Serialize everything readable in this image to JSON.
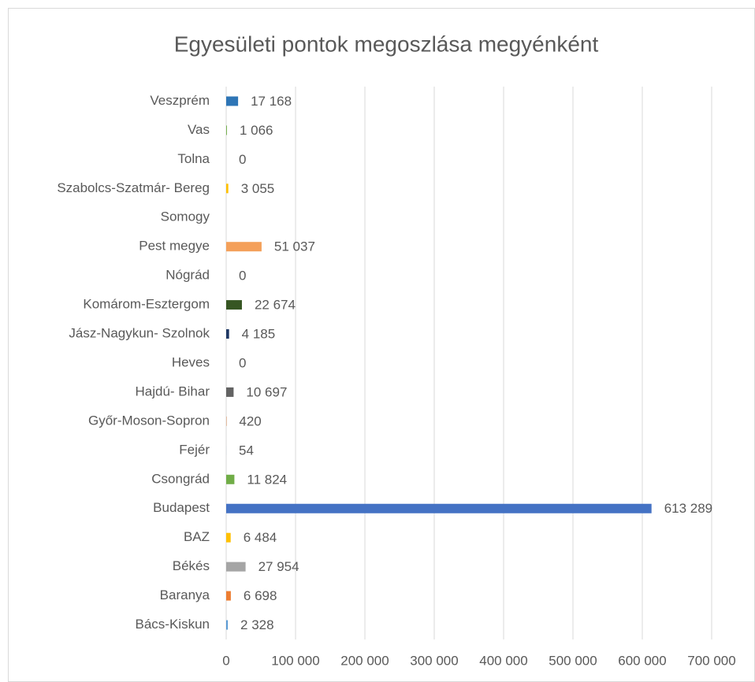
{
  "chart_data": {
    "type": "bar",
    "orientation": "horizontal",
    "title": "Egyesületi pontok megoszlása megyénként",
    "categories": [
      "Veszprém",
      "Vas",
      "Tolna",
      "Szabolcs-Szatmár- Bereg",
      "Somogy",
      "Pest megye",
      "Nógrád",
      "Komárom-Esztergom",
      "Jász-Nagykun- Szolnok",
      "Heves",
      "Hajdú- Bihar",
      "Győr-Moson-Sopron",
      "Fejér",
      "Csongrád",
      "Budapest",
      "BAZ",
      "Békés",
      "Baranya",
      "Bács-Kiskun"
    ],
    "values": [
      17168,
      1066,
      0,
      3055,
      null,
      51037,
      0,
      22674,
      4185,
      0,
      10697,
      420,
      54,
      11824,
      613289,
      6484,
      27954,
      6698,
      2328
    ],
    "value_labels": [
      "17 168",
      "1 066",
      "0",
      "3 055",
      null,
      "51 037",
      "0",
      "22 674",
      "4 185",
      "0",
      "10 697",
      "420",
      "54",
      "11 824",
      "613 289",
      "6 484",
      "27 954",
      "6 698",
      "2 328"
    ],
    "colors": [
      "#2e75b6",
      "#70ad47",
      null,
      "#ffc000",
      null,
      "#f4a05a",
      null,
      "#375623",
      "#1f3864",
      null,
      "#636363",
      "#c55a11",
      "#5b9bd5",
      "#70ad47",
      "#4472c4",
      "#ffc000",
      "#a5a5a5",
      "#ed7d31",
      "#5b9bd5"
    ],
    "xlim": [
      0,
      700000
    ],
    "xticks": [
      0,
      {
        "value": 100000,
        "label": "100 000"
      },
      {
        "value": 200000,
        "label": "200 000"
      },
      {
        "value": 300000,
        "label": "300 000"
      },
      {
        "value": 400000,
        "label": "400 000"
      },
      {
        "value": 500000,
        "label": "500 000"
      },
      {
        "value": 600000,
        "label": "600 000"
      },
      {
        "value": 700000,
        "label": "700 000"
      }
    ],
    "grid": true
  }
}
